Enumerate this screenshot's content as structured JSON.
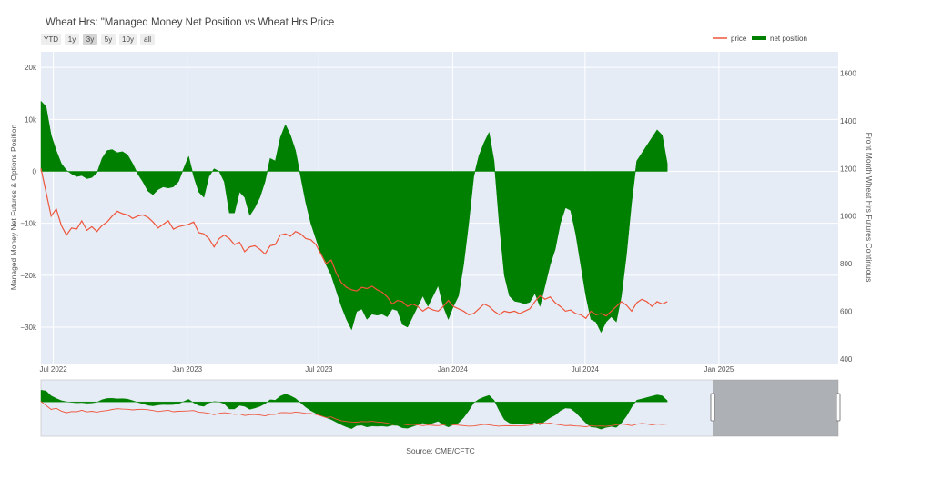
{
  "title": "Wheat Hrs: \"Managed Money Net Position vs Wheat Hrs Price",
  "range_buttons": [
    {
      "label": "YTD",
      "active": false
    },
    {
      "label": "1y",
      "active": false
    },
    {
      "label": "3y",
      "active": true
    },
    {
      "label": "5y",
      "active": false
    },
    {
      "label": "10y",
      "active": false
    },
    {
      "label": "all",
      "active": false
    }
  ],
  "legend": {
    "price": "price",
    "net": "net position"
  },
  "source": "Source: CME/CFTC",
  "colors": {
    "plot_bg": "#e5ecf6",
    "net": "#008000",
    "price": "#ef553b",
    "grid": "#ffffff",
    "navigator_mask": "#7f7f7f"
  },
  "chart_data": {
    "type": "area",
    "x_start": "2022-06-14",
    "x_end": "2025-06-14",
    "x_ticks": [
      {
        "date": "2022-07-01",
        "label": "Jul 2022"
      },
      {
        "date": "2023-01-01",
        "label": "Jan 2023"
      },
      {
        "date": "2023-07-01",
        "label": "Jul 2023"
      },
      {
        "date": "2024-01-01",
        "label": "Jan 2024"
      },
      {
        "date": "2024-07-01",
        "label": "Jul 2024"
      },
      {
        "date": "2025-01-01",
        "label": "Jan 2025"
      }
    ],
    "y_left": {
      "label": "Managed Money Net Futures & Options Position",
      "range": [
        -37000,
        23000
      ],
      "ticks": [
        20000,
        10000,
        0,
        -10000,
        -20000,
        -30000
      ],
      "tick_labels": [
        "20k",
        "10k",
        "0",
        "−10k",
        "−20k",
        "−30k"
      ]
    },
    "y_right": {
      "label": "Front Month Wheat Hrs Futures Continuous",
      "range": [
        380,
        1690
      ],
      "ticks": [
        1600,
        1400,
        1200,
        1000,
        800,
        600,
        400
      ]
    },
    "series": [
      {
        "name": "net position",
        "axis": "left",
        "points": [
          [
            "2022-06-14",
            13500
          ],
          [
            "2022-06-21",
            12500
          ],
          [
            "2022-06-28",
            7000
          ],
          [
            "2022-07-05",
            4000
          ],
          [
            "2022-07-12",
            1500
          ],
          [
            "2022-07-19",
            200
          ],
          [
            "2022-07-26",
            -500
          ],
          [
            "2022-08-02",
            -1000
          ],
          [
            "2022-08-09",
            -800
          ],
          [
            "2022-08-16",
            -1400
          ],
          [
            "2022-08-23",
            -1200
          ],
          [
            "2022-08-30",
            -300
          ],
          [
            "2022-09-06",
            2500
          ],
          [
            "2022-09-13",
            4000
          ],
          [
            "2022-09-20",
            4200
          ],
          [
            "2022-09-27",
            3600
          ],
          [
            "2022-10-04",
            3800
          ],
          [
            "2022-10-11",
            3200
          ],
          [
            "2022-10-18",
            1500
          ],
          [
            "2022-10-25",
            -500
          ],
          [
            "2022-11-01",
            -2000
          ],
          [
            "2022-11-08",
            -3800
          ],
          [
            "2022-11-15",
            -4500
          ],
          [
            "2022-11-22",
            -3500
          ],
          [
            "2022-11-29",
            -3000
          ],
          [
            "2022-12-06",
            -3200
          ],
          [
            "2022-12-13",
            -3000
          ],
          [
            "2022-12-20",
            -2000
          ],
          [
            "2022-12-27",
            500
          ],
          [
            "2023-01-03",
            2900
          ],
          [
            "2023-01-10",
            -1000
          ],
          [
            "2023-01-17",
            -4000
          ],
          [
            "2023-01-24",
            -5000
          ],
          [
            "2023-01-31",
            -1000
          ],
          [
            "2023-02-07",
            500
          ],
          [
            "2023-02-14",
            0
          ],
          [
            "2023-02-21",
            -2000
          ],
          [
            "2023-02-28",
            -8000
          ],
          [
            "2023-03-07",
            -8000
          ],
          [
            "2023-03-14",
            -4000
          ],
          [
            "2023-03-21",
            -5000
          ],
          [
            "2023-03-28",
            -8500
          ],
          [
            "2023-04-04",
            -7000
          ],
          [
            "2023-04-11",
            -5000
          ],
          [
            "2023-04-18",
            -2000
          ],
          [
            "2023-04-25",
            2500
          ],
          [
            "2023-05-02",
            2000
          ],
          [
            "2023-05-09",
            6500
          ],
          [
            "2023-05-16",
            9000
          ],
          [
            "2023-05-23",
            7000
          ],
          [
            "2023-05-30",
            4000
          ],
          [
            "2023-06-06",
            -1000
          ],
          [
            "2023-06-13",
            -6000
          ],
          [
            "2023-06-20",
            -10000
          ],
          [
            "2023-06-27",
            -13000
          ],
          [
            "2023-07-04",
            -16000
          ],
          [
            "2023-07-11",
            -18000
          ],
          [
            "2023-07-18",
            -20000
          ],
          [
            "2023-07-25",
            -23000
          ],
          [
            "2023-08-01",
            -26000
          ],
          [
            "2023-08-08",
            -28500
          ],
          [
            "2023-08-15",
            -30500
          ],
          [
            "2023-08-22",
            -27000
          ],
          [
            "2023-08-29",
            -26500
          ],
          [
            "2023-09-05",
            -28500
          ],
          [
            "2023-09-12",
            -27500
          ],
          [
            "2023-09-19",
            -27700
          ],
          [
            "2023-09-26",
            -27500
          ],
          [
            "2023-10-03",
            -28000
          ],
          [
            "2023-10-10",
            -26500
          ],
          [
            "2023-10-17",
            -26800
          ],
          [
            "2023-10-24",
            -29500
          ],
          [
            "2023-10-31",
            -30000
          ],
          [
            "2023-11-07",
            -28000
          ],
          [
            "2023-11-14",
            -26000
          ],
          [
            "2023-11-21",
            -24000
          ],
          [
            "2023-11-28",
            -26000
          ],
          [
            "2023-12-05",
            -24000
          ],
          [
            "2023-12-12",
            -22000
          ],
          [
            "2023-12-19",
            -26000
          ],
          [
            "2023-12-26",
            -28500
          ],
          [
            "2024-01-02",
            -26000
          ],
          [
            "2024-01-09",
            -24000
          ],
          [
            "2024-01-16",
            -18000
          ],
          [
            "2024-01-23",
            -10000
          ],
          [
            "2024-01-30",
            -1000
          ],
          [
            "2024-02-06",
            3000
          ],
          [
            "2024-02-13",
            5500
          ],
          [
            "2024-02-20",
            7500
          ],
          [
            "2024-02-27",
            2000
          ],
          [
            "2024-03-05",
            -10000
          ],
          [
            "2024-03-12",
            -20000
          ],
          [
            "2024-03-19",
            -24000
          ],
          [
            "2024-03-26",
            -25000
          ],
          [
            "2024-04-02",
            -25200
          ],
          [
            "2024-04-09",
            -25500
          ],
          [
            "2024-04-16",
            -25200
          ],
          [
            "2024-04-23",
            -23500
          ],
          [
            "2024-04-30",
            -26000
          ],
          [
            "2024-05-07",
            -22000
          ],
          [
            "2024-05-14",
            -18000
          ],
          [
            "2024-05-21",
            -15000
          ],
          [
            "2024-05-28",
            -10000
          ],
          [
            "2024-06-04",
            -7000
          ],
          [
            "2024-06-11",
            -7500
          ],
          [
            "2024-06-18",
            -12000
          ],
          [
            "2024-06-25",
            -18000
          ],
          [
            "2024-07-02",
            -24000
          ],
          [
            "2024-07-09",
            -28500
          ],
          [
            "2024-07-16",
            -29000
          ],
          [
            "2024-07-23",
            -31000
          ],
          [
            "2024-07-30",
            -29000
          ],
          [
            "2024-08-06",
            -28000
          ],
          [
            "2024-08-13",
            -29000
          ],
          [
            "2024-08-20",
            -24000
          ],
          [
            "2024-08-27",
            -16000
          ],
          [
            "2024-09-03",
            -6000
          ],
          [
            "2024-09-10",
            2000
          ],
          [
            "2024-09-17",
            3500
          ],
          [
            "2024-09-24",
            5000
          ],
          [
            "2024-10-01",
            6500
          ],
          [
            "2024-10-08",
            8000
          ],
          [
            "2024-10-15",
            7000
          ],
          [
            "2024-10-22",
            1500
          ]
        ]
      },
      {
        "name": "price",
        "axis": "right",
        "points": [
          [
            "2022-06-14",
            1200
          ],
          [
            "2022-06-21",
            1100
          ],
          [
            "2022-06-28",
            1000
          ],
          [
            "2022-07-05",
            1030
          ],
          [
            "2022-07-12",
            960
          ],
          [
            "2022-07-19",
            920
          ],
          [
            "2022-07-26",
            950
          ],
          [
            "2022-08-02",
            945
          ],
          [
            "2022-08-09",
            980
          ],
          [
            "2022-08-16",
            940
          ],
          [
            "2022-08-23",
            955
          ],
          [
            "2022-08-30",
            935
          ],
          [
            "2022-09-06",
            960
          ],
          [
            "2022-09-13",
            975
          ],
          [
            "2022-09-20",
            1000
          ],
          [
            "2022-09-27",
            1020
          ],
          [
            "2022-10-04",
            1010
          ],
          [
            "2022-10-11",
            1005
          ],
          [
            "2022-10-18",
            990
          ],
          [
            "2022-10-25",
            1000
          ],
          [
            "2022-11-01",
            1005
          ],
          [
            "2022-11-08",
            995
          ],
          [
            "2022-11-15",
            975
          ],
          [
            "2022-11-22",
            950
          ],
          [
            "2022-11-29",
            965
          ],
          [
            "2022-12-06",
            980
          ],
          [
            "2022-12-13",
            945
          ],
          [
            "2022-12-20",
            955
          ],
          [
            "2022-12-27",
            960
          ],
          [
            "2023-01-03",
            965
          ],
          [
            "2023-01-10",
            975
          ],
          [
            "2023-01-17",
            930
          ],
          [
            "2023-01-24",
            925
          ],
          [
            "2023-01-31",
            905
          ],
          [
            "2023-02-07",
            870
          ],
          [
            "2023-02-14",
            905
          ],
          [
            "2023-02-21",
            920
          ],
          [
            "2023-02-28",
            905
          ],
          [
            "2023-03-07",
            880
          ],
          [
            "2023-03-14",
            890
          ],
          [
            "2023-03-21",
            850
          ],
          [
            "2023-03-28",
            870
          ],
          [
            "2023-04-04",
            875
          ],
          [
            "2023-04-11",
            860
          ],
          [
            "2023-04-18",
            840
          ],
          [
            "2023-04-25",
            875
          ],
          [
            "2023-05-02",
            880
          ],
          [
            "2023-05-09",
            920
          ],
          [
            "2023-05-16",
            925
          ],
          [
            "2023-05-23",
            915
          ],
          [
            "2023-05-30",
            935
          ],
          [
            "2023-06-06",
            925
          ],
          [
            "2023-06-13",
            905
          ],
          [
            "2023-06-20",
            900
          ],
          [
            "2023-06-27",
            880
          ],
          [
            "2023-07-04",
            840
          ],
          [
            "2023-07-11",
            800
          ],
          [
            "2023-07-18",
            815
          ],
          [
            "2023-07-25",
            760
          ],
          [
            "2023-08-01",
            720
          ],
          [
            "2023-08-08",
            700
          ],
          [
            "2023-08-15",
            690
          ],
          [
            "2023-08-22",
            685
          ],
          [
            "2023-08-29",
            700
          ],
          [
            "2023-09-05",
            695
          ],
          [
            "2023-09-12",
            705
          ],
          [
            "2023-09-19",
            690
          ],
          [
            "2023-09-26",
            680
          ],
          [
            "2023-10-03",
            660
          ],
          [
            "2023-10-10",
            630
          ],
          [
            "2023-10-17",
            645
          ],
          [
            "2023-10-24",
            640
          ],
          [
            "2023-10-31",
            620
          ],
          [
            "2023-11-07",
            630
          ],
          [
            "2023-11-14",
            620
          ],
          [
            "2023-11-21",
            600
          ],
          [
            "2023-11-28",
            615
          ],
          [
            "2023-12-05",
            605
          ],
          [
            "2023-12-12",
            600
          ],
          [
            "2023-12-19",
            620
          ],
          [
            "2023-12-26",
            645
          ],
          [
            "2024-01-02",
            620
          ],
          [
            "2024-01-09",
            610
          ],
          [
            "2024-01-16",
            600
          ],
          [
            "2024-01-23",
            585
          ],
          [
            "2024-01-30",
            590
          ],
          [
            "2024-02-06",
            610
          ],
          [
            "2024-02-13",
            630
          ],
          [
            "2024-02-20",
            620
          ],
          [
            "2024-02-27",
            600
          ],
          [
            "2024-03-05",
            585
          ],
          [
            "2024-03-12",
            600
          ],
          [
            "2024-03-19",
            595
          ],
          [
            "2024-03-26",
            600
          ],
          [
            "2024-04-02",
            590
          ],
          [
            "2024-04-09",
            600
          ],
          [
            "2024-04-16",
            610
          ],
          [
            "2024-04-23",
            640
          ],
          [
            "2024-04-30",
            665
          ],
          [
            "2024-05-07",
            650
          ],
          [
            "2024-05-14",
            660
          ],
          [
            "2024-05-21",
            635
          ],
          [
            "2024-05-28",
            620
          ],
          [
            "2024-06-04",
            600
          ],
          [
            "2024-06-11",
            605
          ],
          [
            "2024-06-18",
            590
          ],
          [
            "2024-06-25",
            585
          ],
          [
            "2024-07-02",
            570
          ],
          [
            "2024-07-09",
            600
          ],
          [
            "2024-07-16",
            585
          ],
          [
            "2024-07-23",
            590
          ],
          [
            "2024-07-30",
            580
          ],
          [
            "2024-08-06",
            600
          ],
          [
            "2024-08-13",
            620
          ],
          [
            "2024-08-20",
            640
          ],
          [
            "2024-08-27",
            625
          ],
          [
            "2024-09-03",
            600
          ],
          [
            "2024-09-10",
            635
          ],
          [
            "2024-09-17",
            650
          ],
          [
            "2024-09-24",
            640
          ],
          [
            "2024-10-01",
            620
          ],
          [
            "2024-10-08",
            640
          ],
          [
            "2024-10-15",
            630
          ],
          [
            "2024-10-22",
            640
          ]
        ]
      }
    ]
  }
}
